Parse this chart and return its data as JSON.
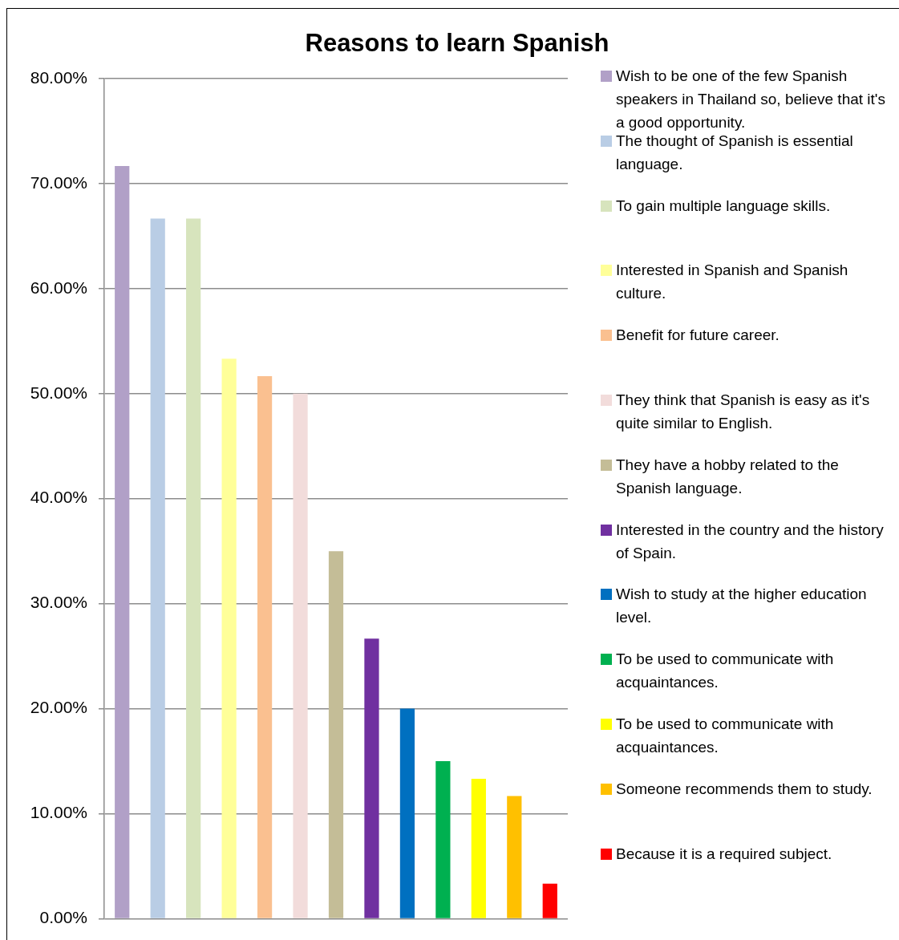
{
  "chart_data": {
    "type": "bar",
    "title": "Reasons to learn Spanish",
    "categories": [
      null
    ],
    "series": [
      {
        "name": "Wish to be one of the few Spanish speakers in Thailand so, believe that it's a good opportunity.",
        "color": "#b1a0c7",
        "values": [
          71.67
        ]
      },
      {
        "name": "The thought of Spanish is essential language.",
        "color": "#b9cde5",
        "values": [
          66.67
        ]
      },
      {
        "name": "To gain multiple language skills.",
        "color": "#d7e4bd",
        "values": [
          66.67
        ]
      },
      {
        "name": "Interested in Spanish and Spanish culture.",
        "color": "#ffff99",
        "values": [
          53.33
        ]
      },
      {
        "name": "Benefit for future career.",
        "color": "#fac090",
        "values": [
          51.67
        ]
      },
      {
        "name": "They think that Spanish is easy as it's quite similar to English.",
        "color": "#f2dcdb",
        "values": [
          50
        ]
      },
      {
        "name": "They have a hobby related to the Spanish language.",
        "color": "#c4bd97",
        "values": [
          35
        ]
      },
      {
        "name": "Interested in the country and the history of Spain.",
        "color": "#7030a0",
        "values": [
          26.67
        ]
      },
      {
        "name": "Wish to study at the higher education level.",
        "color": "#0070c0",
        "values": [
          20
        ]
      },
      {
        "name": "To be used to communicate with acquaintances.",
        "color": "#00b050",
        "values": [
          15
        ]
      },
      {
        "name": "To be used to communicate with acquaintances.",
        "color": "#ffff00",
        "values": [
          13.33
        ]
      },
      {
        "name": "Someone recommends them to study.",
        "color": "#ffc000",
        "values": [
          11.67
        ]
      },
      {
        "name": "Because it is a required subject.",
        "color": "#ff0000",
        "values": [
          3.33
        ]
      }
    ],
    "ylim": [
      0,
      80
    ],
    "yticks": [
      {
        "value": 0,
        "label": "0.00%"
      },
      {
        "value": 10,
        "label": "10.00%"
      },
      {
        "value": 20,
        "label": "20.00%"
      },
      {
        "value": 30,
        "label": "30.00%"
      },
      {
        "value": 40,
        "label": "40.00%"
      },
      {
        "value": 50,
        "label": "50.00%"
      },
      {
        "value": 60,
        "label": "60.00%"
      },
      {
        "value": 70,
        "label": "70.00%"
      },
      {
        "value": 80,
        "label": "80.00%"
      }
    ],
    "grid": "y",
    "legend": "right"
  }
}
